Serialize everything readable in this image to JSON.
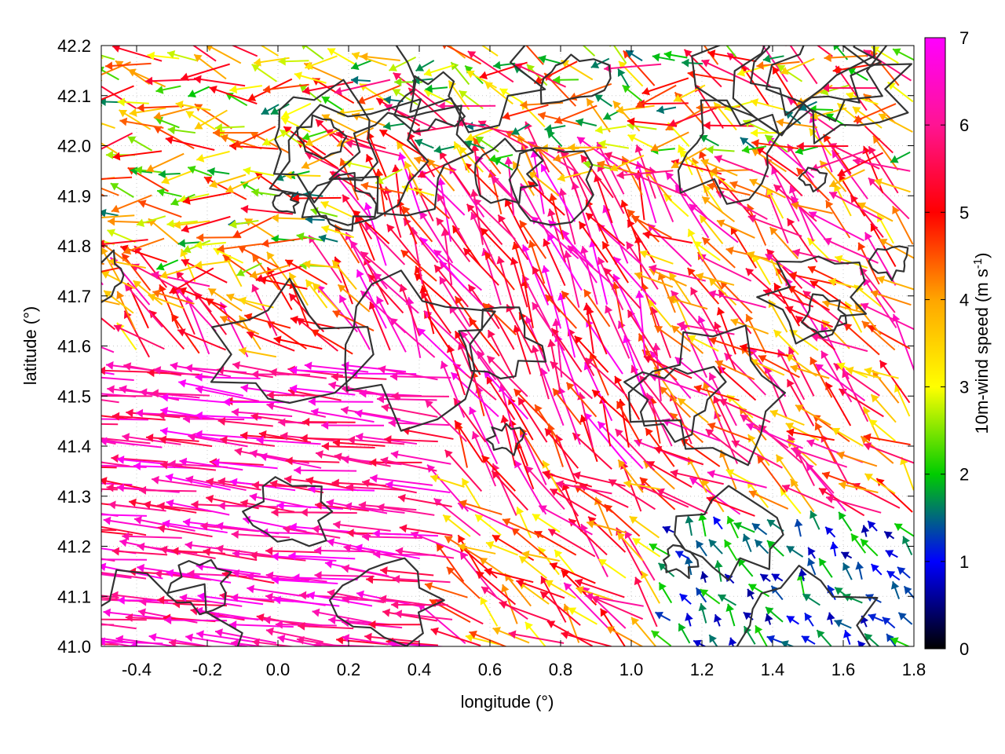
{
  "chart_data": {
    "type": "vector-field",
    "xlabel": "longitude (°)",
    "ylabel": "latitude (°)",
    "xlim": [
      -0.5,
      1.8
    ],
    "ylim": [
      41.0,
      42.2
    ],
    "xticks": [
      "-0.4",
      "-0.2",
      "0.0",
      "0.2",
      "0.4",
      "0.6",
      "0.8",
      "1.0",
      "1.2",
      "1.4",
      "1.6",
      "1.8"
    ],
    "yticks": [
      "41.0",
      "41.1",
      "41.2",
      "41.3",
      "41.4",
      "41.5",
      "41.6",
      "41.7",
      "41.8",
      "41.9",
      "42.0",
      "42.1",
      "42.2"
    ],
    "colorbar": {
      "label": "10m-wind speed (m s",
      "label_sup": "-1",
      "label_end": ")",
      "range": [
        0,
        7
      ],
      "ticks": [
        "0",
        "1",
        "2",
        "3",
        "4",
        "5",
        "6",
        "7"
      ],
      "palette": [
        "#000000",
        "#0000ff",
        "#00cc00",
        "#ffff00",
        "#ffa500",
        "#ff0000",
        "#ff00ff"
      ]
    },
    "grid": true,
    "vectors_summary": {
      "west_region_speed_m_s": [
        6,
        7
      ],
      "west_region_direction": "westward (from east)",
      "center_region_direction": "north to north-westward",
      "southeast_corner_speed_m_s": [
        0.5,
        2
      ]
    },
    "contour_color": "#333333"
  }
}
